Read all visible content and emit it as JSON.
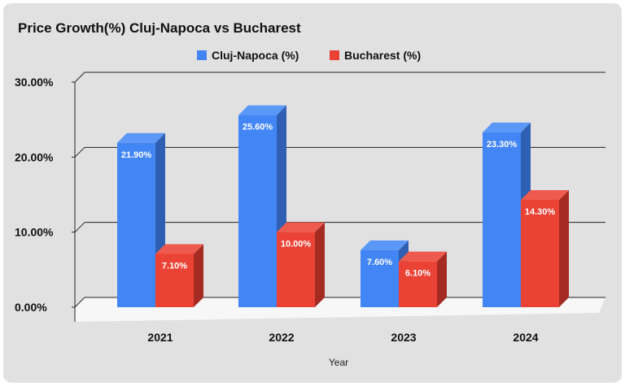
{
  "chart_data": {
    "type": "bar",
    "title": "Price Growth(%) Cluj-Napoca vs Bucharest",
    "xlabel": "Year",
    "ylabel": "",
    "categories": [
      "2021",
      "2022",
      "2023",
      "2024"
    ],
    "series": [
      {
        "name": "Cluj-Napoca (%)",
        "color": "#4285f4",
        "side_color": "#2f5fb3",
        "top_color": "#5b97f6",
        "values": [
          21.9,
          25.6,
          7.6,
          23.3
        ],
        "labels": [
          "21.90%",
          "25.60%",
          "7.60%",
          "23.30%"
        ]
      },
      {
        "name": "Bucharest (%)",
        "color": "#ea4335",
        "side_color": "#a52a22",
        "top_color": "#ee5b4e",
        "values": [
          7.1,
          10.0,
          6.1,
          14.3
        ],
        "labels": [
          "7.10%",
          "10.00%",
          "6.10%",
          "14.30%"
        ]
      }
    ],
    "ylim": [
      0,
      30
    ],
    "yticks": [
      0,
      10,
      20,
      30
    ],
    "ytick_labels": [
      "0.00%",
      "10.00%",
      "20.00%",
      "30.00%"
    ],
    "grid": true,
    "legend_position": "top-center",
    "style": "3d"
  }
}
